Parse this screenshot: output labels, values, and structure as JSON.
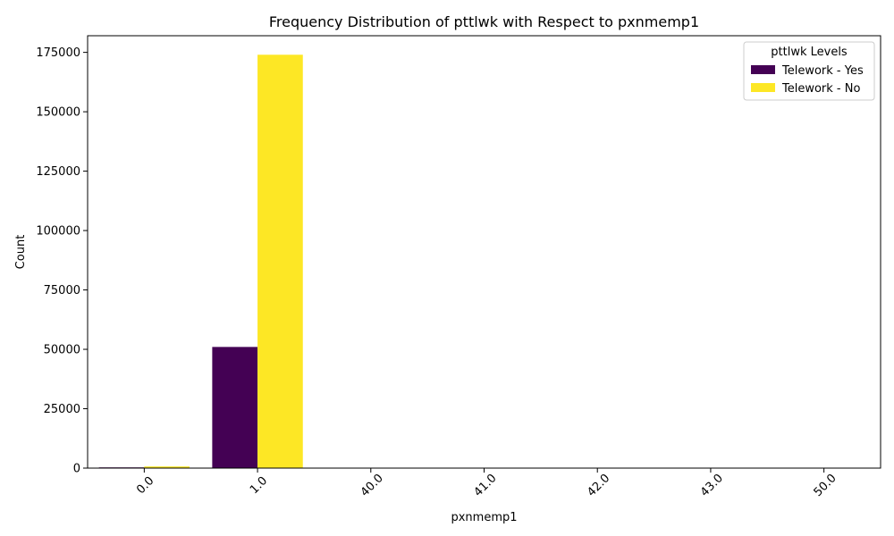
{
  "chart_data": {
    "type": "bar",
    "title": "Frequency Distribution of pttlwk with Respect to pxnmemp1",
    "xlabel": "pxnmemp1",
    "ylabel": "Count",
    "categories": [
      "0.0",
      "1.0",
      "40.0",
      "41.0",
      "42.0",
      "43.0",
      "50.0"
    ],
    "series": [
      {
        "name": "Telework - Yes",
        "color": "#440154",
        "values": [
          300,
          51000,
          0,
          0,
          0,
          0,
          0
        ]
      },
      {
        "name": "Telework - No",
        "color": "#fde725",
        "values": [
          700,
          174000,
          0,
          0,
          0,
          0,
          0
        ]
      }
    ],
    "ylim": [
      0,
      182000
    ],
    "yticks": [
      0,
      25000,
      50000,
      75000,
      100000,
      125000,
      150000,
      175000
    ],
    "legend": {
      "title": "pttlwk Levels",
      "position": "top-right"
    },
    "grid": false
  }
}
